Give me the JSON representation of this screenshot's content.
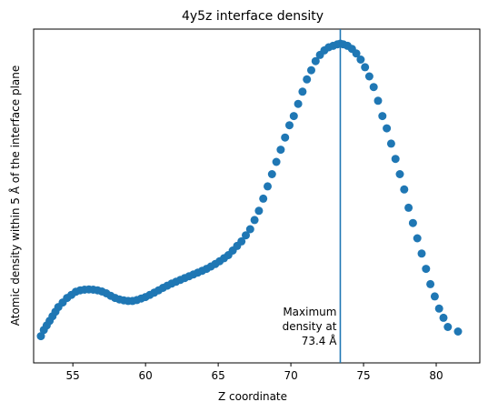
{
  "chart_data": {
    "type": "scatter",
    "title": "4y5z interface density",
    "xlabel": "Z coordinate",
    "ylabel": "Atomic density within 5 Å of the interface plane",
    "xlim": [
      52.3,
      83.0
    ],
    "ylim": [
      0.0,
      1.0
    ],
    "y_ticks_shown": false,
    "x_ticks": [
      55,
      60,
      65,
      70,
      75,
      80
    ],
    "x_tick_labels": [
      "55",
      "60",
      "65",
      "70",
      "75",
      "80"
    ],
    "grid": false,
    "legend": "none",
    "marker_color": "#1f77b4",
    "vline": {
      "x": 73.4,
      "color": "#1f77b4",
      "annotation": [
        "Maximum",
        "density at",
        "73.4 Å"
      ]
    },
    "points": {
      "x": [
        52.8,
        53.0,
        53.2,
        53.4,
        53.6,
        53.8,
        54.0,
        54.3,
        54.6,
        54.9,
        55.2,
        55.5,
        55.8,
        56.1,
        56.4,
        56.7,
        57.0,
        57.3,
        57.6,
        57.9,
        58.2,
        58.5,
        58.8,
        59.1,
        59.4,
        59.7,
        60.0,
        60.3,
        60.6,
        60.9,
        61.2,
        61.5,
        61.8,
        62.1,
        62.4,
        62.7,
        63.0,
        63.3,
        63.6,
        63.9,
        64.2,
        64.5,
        64.8,
        65.1,
        65.4,
        65.7,
        66.0,
        66.3,
        66.6,
        66.9,
        67.2,
        67.5,
        67.8,
        68.1,
        68.4,
        68.7,
        69.0,
        69.3,
        69.6,
        69.9,
        70.2,
        70.5,
        70.8,
        71.1,
        71.4,
        71.7,
        72.0,
        72.3,
        72.6,
        72.9,
        73.2,
        73.4,
        73.6,
        73.9,
        74.2,
        74.5,
        74.8,
        75.1,
        75.4,
        75.7,
        76.0,
        76.3,
        76.6,
        76.9,
        77.2,
        77.5,
        77.8,
        78.1,
        78.4,
        78.7,
        79.0,
        79.3,
        79.6,
        79.9,
        80.2,
        80.5,
        80.8,
        81.5
      ],
      "y": [
        0.04,
        0.06,
        0.075,
        0.09,
        0.105,
        0.12,
        0.135,
        0.15,
        0.165,
        0.175,
        0.185,
        0.19,
        0.192,
        0.193,
        0.192,
        0.19,
        0.186,
        0.18,
        0.172,
        0.165,
        0.16,
        0.157,
        0.155,
        0.155,
        0.158,
        0.163,
        0.168,
        0.175,
        0.182,
        0.19,
        0.198,
        0.205,
        0.212,
        0.218,
        0.224,
        0.23,
        0.236,
        0.242,
        0.248,
        0.254,
        0.26,
        0.268,
        0.276,
        0.285,
        0.295,
        0.305,
        0.32,
        0.335,
        0.35,
        0.37,
        0.39,
        0.42,
        0.45,
        0.49,
        0.53,
        0.57,
        0.61,
        0.65,
        0.69,
        0.73,
        0.76,
        0.8,
        0.84,
        0.88,
        0.91,
        0.94,
        0.96,
        0.975,
        0.985,
        0.99,
        0.995,
        0.997,
        0.995,
        0.99,
        0.98,
        0.965,
        0.945,
        0.92,
        0.89,
        0.855,
        0.81,
        0.76,
        0.72,
        0.67,
        0.62,
        0.57,
        0.52,
        0.46,
        0.41,
        0.36,
        0.31,
        0.26,
        0.21,
        0.17,
        0.13,
        0.1,
        0.07,
        0.055
      ]
    }
  }
}
